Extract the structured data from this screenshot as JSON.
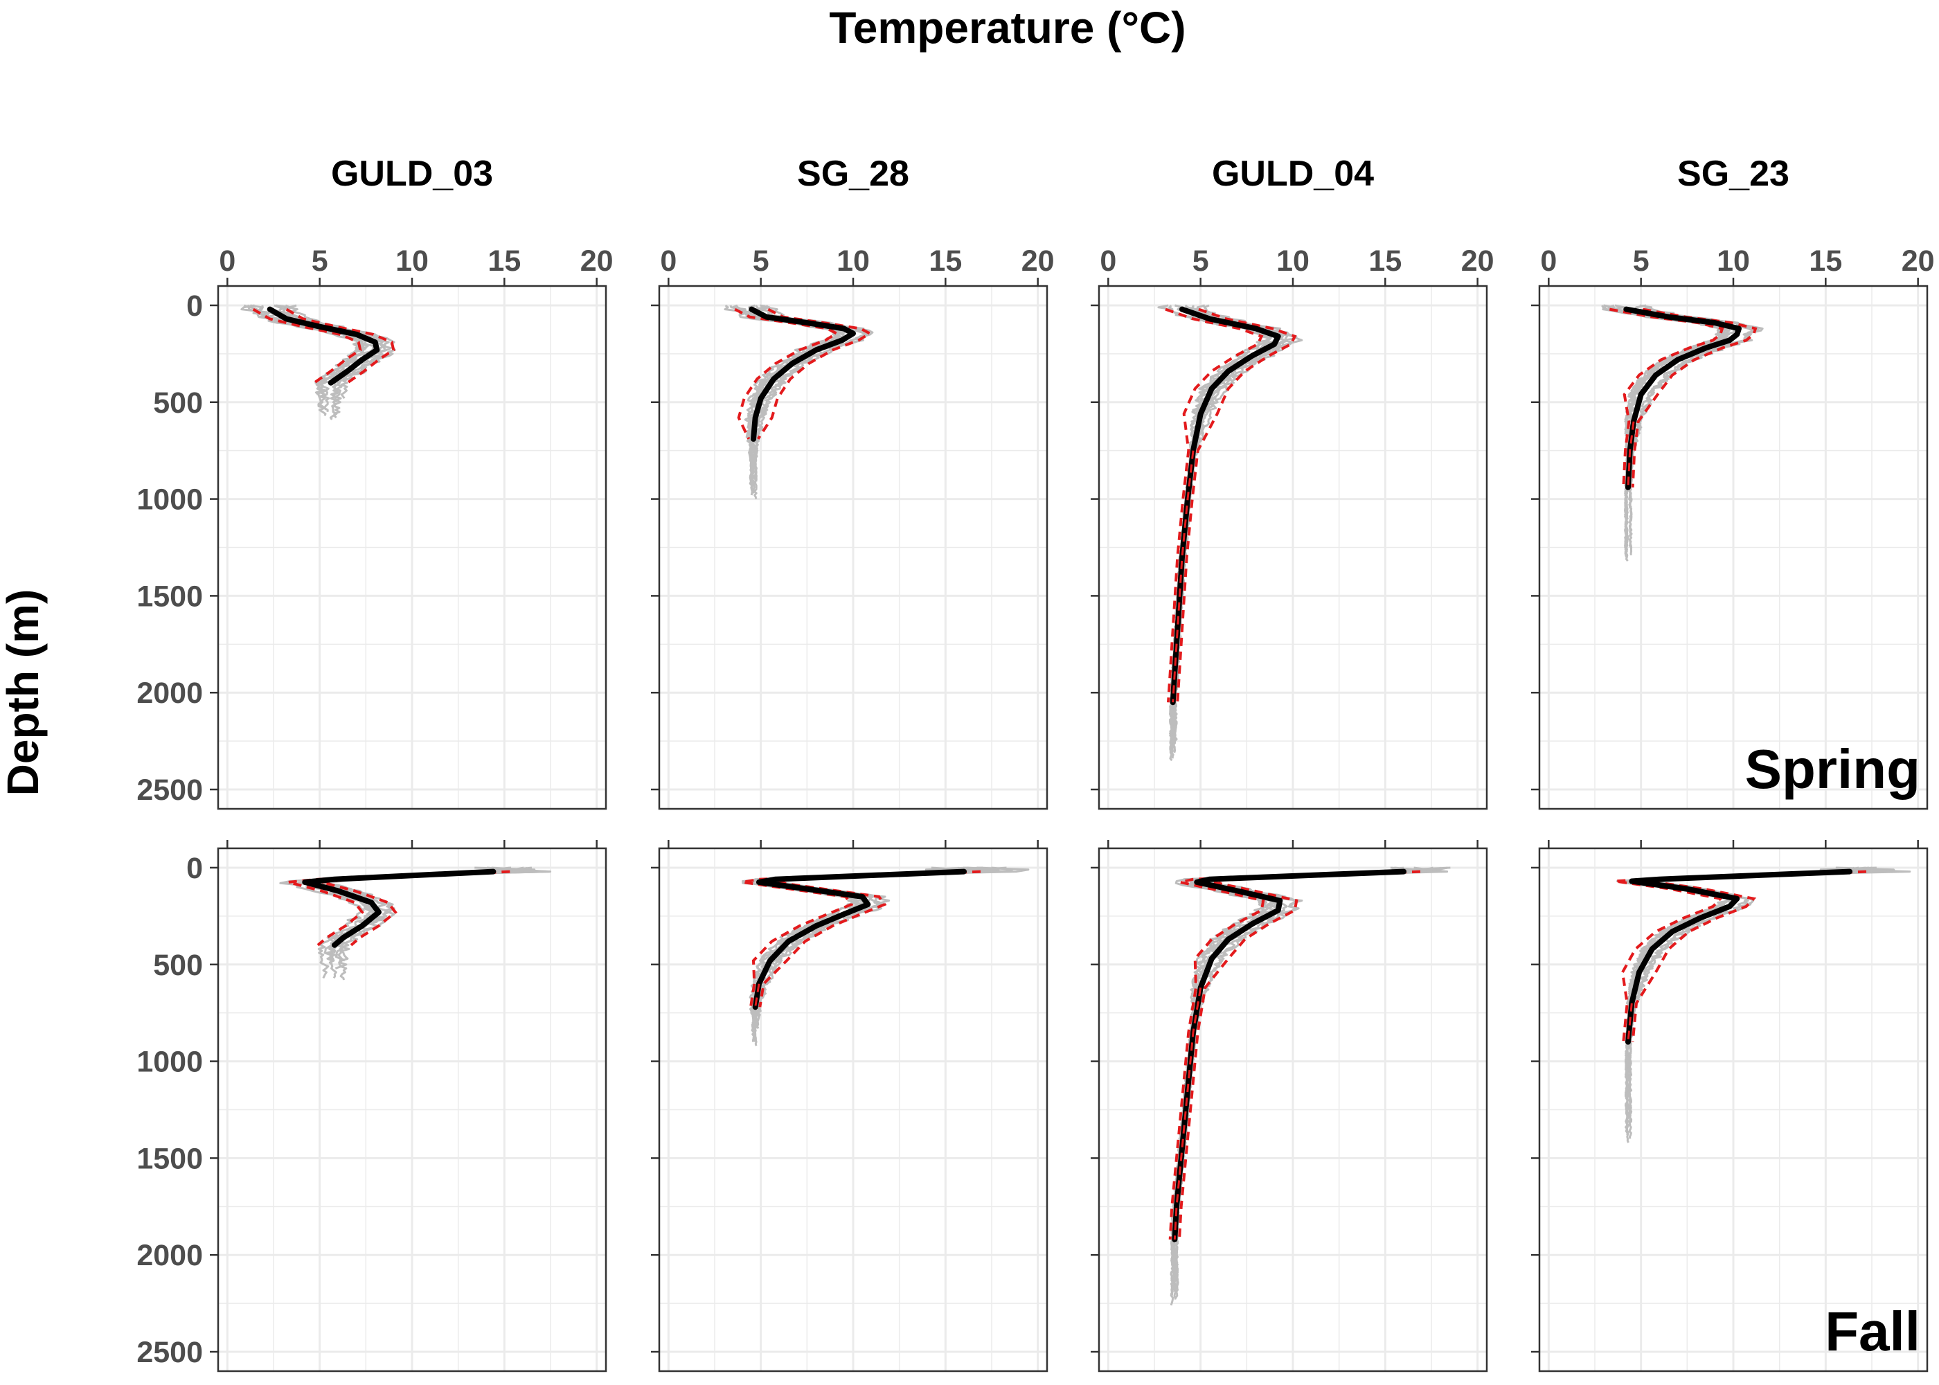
{
  "chart_data": {
    "type": "line",
    "title": "Temperature (°C)",
    "xlabel": "Temperature (°C)",
    "ylabel": "Depth (m)",
    "x_ticks": [
      0,
      5,
      10,
      15,
      20
    ],
    "y_ticks": [
      0,
      500,
      1000,
      1500,
      2000,
      2500
    ],
    "xlim": [
      -0.5,
      20.5
    ],
    "ylim": [
      2600,
      -100
    ],
    "y_reversed": true,
    "grid": true,
    "stations": [
      "GULD_03",
      "SG_28",
      "GULD_04",
      "SG_23"
    ],
    "seasons": [
      "Spring",
      "Fall"
    ],
    "colors": {
      "mean": "#000000",
      "band": "#e31a1c",
      "casts": "#bdbdbd",
      "grid": "#ebebeb",
      "tick_text": "#4d4d4d"
    },
    "series_roles": [
      "mean profile (solid black)",
      "±1 SD (dashed red)",
      "individual casts (grey)"
    ],
    "panels": [
      {
        "station": "GULD_03",
        "season": "Spring",
        "cast_max_depth": 590,
        "mean": [
          [
            2.3,
            20
          ],
          [
            3.2,
            70
          ],
          [
            5.0,
            110
          ],
          [
            7.0,
            150
          ],
          [
            8.0,
            190
          ],
          [
            8.1,
            230
          ],
          [
            7.3,
            280
          ],
          [
            6.5,
            340
          ],
          [
            5.6,
            400
          ]
        ]
      },
      {
        "station": "SG_28",
        "season": "Spring",
        "cast_max_depth": 1000,
        "mean": [
          [
            4.5,
            20
          ],
          [
            5.3,
            60
          ],
          [
            7.5,
            90
          ],
          [
            9.5,
            120
          ],
          [
            10.0,
            145
          ],
          [
            9.4,
            180
          ],
          [
            8.0,
            230
          ],
          [
            6.7,
            300
          ],
          [
            5.7,
            380
          ],
          [
            5.0,
            480
          ],
          [
            4.7,
            580
          ],
          [
            4.6,
            690
          ]
        ]
      },
      {
        "station": "GULD_04",
        "season": "Spring",
        "cast_max_depth": 2350,
        "mean": [
          [
            4.0,
            20
          ],
          [
            5.5,
            70
          ],
          [
            8.0,
            120
          ],
          [
            9.2,
            160
          ],
          [
            9.0,
            200
          ],
          [
            7.8,
            260
          ],
          [
            6.5,
            340
          ],
          [
            5.6,
            430
          ],
          [
            5.0,
            560
          ],
          [
            4.6,
            750
          ],
          [
            4.3,
            1000
          ],
          [
            4.0,
            1300
          ],
          [
            3.8,
            1600
          ],
          [
            3.6,
            1900
          ],
          [
            3.5,
            2050
          ]
        ]
      },
      {
        "station": "SG_23",
        "season": "Spring",
        "cast_max_depth": 1320,
        "mean": [
          [
            4.2,
            20
          ],
          [
            6.5,
            60
          ],
          [
            9.0,
            90
          ],
          [
            10.3,
            120
          ],
          [
            10.2,
            150
          ],
          [
            9.8,
            180
          ],
          [
            8.5,
            220
          ],
          [
            7.0,
            280
          ],
          [
            5.8,
            360
          ],
          [
            5.0,
            460
          ],
          [
            4.6,
            600
          ],
          [
            4.4,
            750
          ],
          [
            4.3,
            940
          ]
        ]
      },
      {
        "station": "GULD_03",
        "season": "Fall",
        "cast_max_depth": 580,
        "mean": [
          [
            14.4,
            20
          ],
          [
            5.8,
            60
          ],
          [
            4.2,
            75
          ],
          [
            6.0,
            120
          ],
          [
            7.8,
            180
          ],
          [
            8.2,
            230
          ],
          [
            7.3,
            300
          ],
          [
            6.3,
            360
          ],
          [
            5.8,
            400
          ]
        ]
      },
      {
        "station": "SG_28",
        "season": "Fall",
        "cast_max_depth": 920,
        "mean": [
          [
            16.0,
            20
          ],
          [
            5.8,
            60
          ],
          [
            4.9,
            75
          ],
          [
            7.5,
            110
          ],
          [
            10.5,
            150
          ],
          [
            10.8,
            190
          ],
          [
            9.5,
            240
          ],
          [
            8.0,
            300
          ],
          [
            6.5,
            380
          ],
          [
            5.5,
            480
          ],
          [
            4.9,
            600
          ],
          [
            4.7,
            720
          ]
        ]
      },
      {
        "station": "GULD_04",
        "season": "Fall",
        "cast_max_depth": 2260,
        "mean": [
          [
            16.0,
            20
          ],
          [
            5.5,
            60
          ],
          [
            4.8,
            75
          ],
          [
            7.0,
            120
          ],
          [
            9.3,
            170
          ],
          [
            9.2,
            220
          ],
          [
            7.8,
            290
          ],
          [
            6.5,
            370
          ],
          [
            5.6,
            470
          ],
          [
            5.0,
            620
          ],
          [
            4.6,
            850
          ],
          [
            4.3,
            1150
          ],
          [
            4.0,
            1450
          ],
          [
            3.7,
            1750
          ],
          [
            3.6,
            1920
          ]
        ]
      },
      {
        "station": "SG_23",
        "season": "Fall",
        "cast_max_depth": 1420,
        "mean": [
          [
            16.3,
            20
          ],
          [
            6.0,
            60
          ],
          [
            4.5,
            70
          ],
          [
            7.5,
            110
          ],
          [
            10.2,
            160
          ],
          [
            9.8,
            200
          ],
          [
            8.2,
            260
          ],
          [
            6.7,
            330
          ],
          [
            5.6,
            420
          ],
          [
            4.9,
            540
          ],
          [
            4.5,
            700
          ],
          [
            4.3,
            900
          ]
        ]
      }
    ]
  }
}
